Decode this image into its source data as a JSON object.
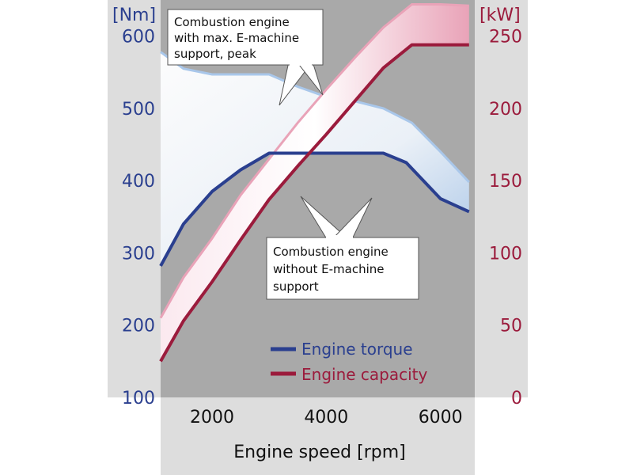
{
  "chart_data": {
    "type": "line",
    "title": "",
    "xlabel": "Engine speed [rpm]",
    "ylabel_left": "[Nm]",
    "ylabel_right": "[kW]",
    "xlim": [
      1100,
      6600
    ],
    "ylim_left": [
      100,
      650
    ],
    "ylim_right": [
      0,
      275
    ],
    "x_ticks": [
      2000,
      4000,
      6000
    ],
    "y_left_ticks": [
      100,
      200,
      300,
      400,
      500,
      600
    ],
    "y_right_ticks": [
      0,
      50,
      100,
      150,
      200,
      250
    ],
    "grid": false,
    "legend_position": "bottom-right",
    "legend": [
      "Engine torque",
      "Engine capacity"
    ],
    "series": [
      {
        "name": "Engine torque",
        "axis": "left",
        "color": "#2a3f8f",
        "x": [
          1100,
          1500,
          2000,
          2500,
          3000,
          3500,
          4000,
          4500,
          5000,
          5400,
          6000,
          6500
        ],
        "values": [
          282,
          340,
          385,
          415,
          438,
          438,
          438,
          438,
          438,
          425,
          375,
          357
        ]
      },
      {
        "name": "Engine capacity",
        "axis": "right",
        "color": "#9b1b3c",
        "x": [
          1100,
          1500,
          2000,
          2500,
          3000,
          3500,
          4000,
          4500,
          5000,
          5500,
          6000,
          6500
        ],
        "values": [
          25,
          53,
          80,
          109,
          137,
          160,
          182,
          205,
          228,
          244,
          244,
          244
        ]
      }
    ],
    "bands": [
      {
        "of": "Engine torque",
        "axis": "left",
        "color": "#a9c7ea",
        "upper_x": [
          1100,
          1500,
          2000,
          2500,
          3000,
          3500,
          4000,
          4500,
          5000,
          5500,
          6000,
          6500
        ],
        "upper_values": [
          578,
          555,
          547,
          547,
          547,
          530,
          516,
          510,
          500,
          480,
          440,
          398
        ]
      },
      {
        "of": "Engine capacity",
        "axis": "right",
        "color": "#e9a3b8",
        "upper_x": [
          1100,
          1500,
          2000,
          2500,
          3000,
          3500,
          4000,
          4500,
          5000,
          5500,
          6000,
          6500
        ],
        "upper_values": [
          55,
          83,
          110,
          140,
          165,
          190,
          213,
          235,
          256,
          272,
          272,
          271
        ]
      }
    ],
    "annotations": [
      {
        "text": [
          "Combustion engine",
          "with max. E-machine",
          "support, peak"
        ]
      },
      {
        "text": [
          "Combustion engine",
          "without E-machine",
          "support"
        ]
      }
    ]
  },
  "colors": {
    "plot_background": "#a9a9a9",
    "axis_panel": "#dddddd",
    "torque": "#2a3f8f",
    "capacity": "#9b1b3c",
    "torque_band": "#a9c7ea",
    "capacity_band": "#e9a3b8"
  }
}
